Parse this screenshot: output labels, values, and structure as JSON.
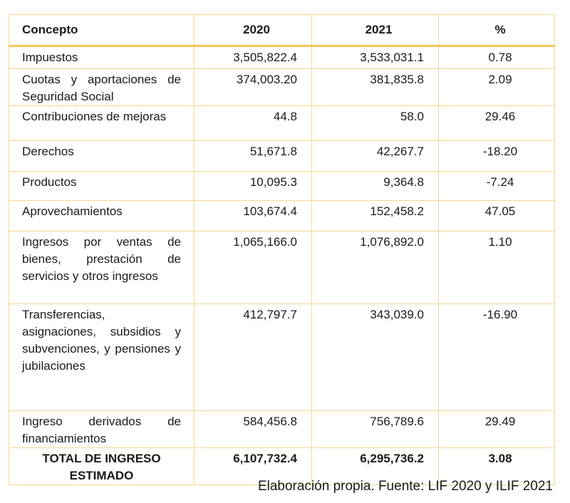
{
  "table": {
    "header": [
      "Concepto",
      "2020",
      "2021",
      "%"
    ],
    "rows": [
      [
        "Impuestos",
        "3,505,822.4",
        "3,533,031.1",
        "0.78"
      ],
      [
        "Cuotas y aportaciones de Seguridad Social",
        "374,003.20",
        "381,835.8",
        "2.09"
      ],
      [
        "Contribuciones de mejoras",
        "44.8",
        "58.0",
        "29.46"
      ],
      [
        "Derechos",
        "51,671.8",
        "42,267.7",
        "-18.20"
      ],
      [
        "Productos",
        "10,095.3",
        "9,364.8",
        "-7.24"
      ],
      [
        "Aprovechamientos",
        "103,674.4",
        "152,458.2",
        "47.05"
      ],
      [
        "Ingresos por ventas de bienes, prestación de servicios y otros ingresos",
        "1,065,166.0",
        "1,076,892.0",
        "1.10"
      ],
      [
        "Transferencias, asignaciones, subsidios y subvenciones, y pensiones y jubilaciones",
        "412,797.7",
        "343,039.0",
        "-16.90"
      ],
      [
        "Ingreso derivados de financiamientos",
        "584,456.8",
        "756,789.6",
        "29.49"
      ]
    ],
    "total": [
      "TOTAL DE INGRESO ESTIMADO",
      "6,107,732.4",
      "6,295,736.2",
      "3.08"
    ]
  },
  "footer": "Elaboración propia. Fuente: LIF 2020 y ILIF 2021"
}
